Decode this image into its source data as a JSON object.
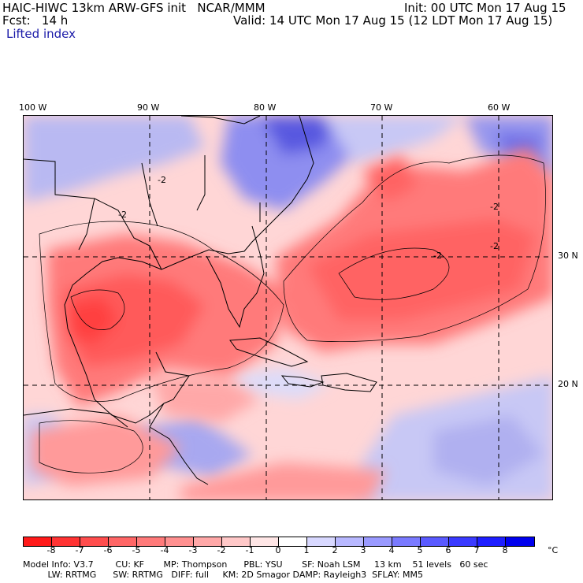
{
  "header": {
    "title": "HAIC-HIWC 13km ARW-GFS init   NCAR/MMM",
    "init": "Init: 00 UTC Mon 17 Aug 15",
    "fcst": "Fcst:   14 h",
    "valid": "Valid: 14 UTC Mon 17 Aug 15 (12 LDT Mon 17 Aug 15)",
    "field": "Lifted index"
  },
  "map": {
    "longitudes": [
      "100 W",
      "90 W",
      "80 W",
      "70 W",
      "60 W"
    ],
    "latitudes": [
      "30 N",
      "20 N"
    ],
    "contour_labels": [
      "-2",
      "-2",
      "-2",
      "-2",
      "-2"
    ]
  },
  "colorbar": {
    "unit": "°C",
    "ticks": [
      "-8",
      "-7",
      "-6",
      "-5",
      "-4",
      "-3",
      "-2",
      "-1",
      "0",
      "1",
      "2",
      "3",
      "4",
      "5",
      "6",
      "7",
      "8"
    ],
    "colors": [
      "#ff1a1a",
      "#ff3333",
      "#ff4d4d",
      "#ff6666",
      "#ff7a7a",
      "#ff9090",
      "#ffa8a8",
      "#ffc8c8",
      "#ffe6e6",
      "#ffffff",
      "#d8d8ff",
      "#b8b8ff",
      "#9a9aff",
      "#7a7aff",
      "#5a5aff",
      "#3a3aff",
      "#1e1eff",
      "#0000ee"
    ]
  },
  "model_info": {
    "line1": "Model Info: V3.7        CU: KF       MP: Thompson      PBL: YSU       SF: Noah LSM     13 km    51 levels   60 sec",
    "line2": "         LW: RRTMG      SW: RRTMG   DIFF: full     KM: 2D Smagor DAMP: Rayleigh3  SFLAY: MM5"
  }
}
